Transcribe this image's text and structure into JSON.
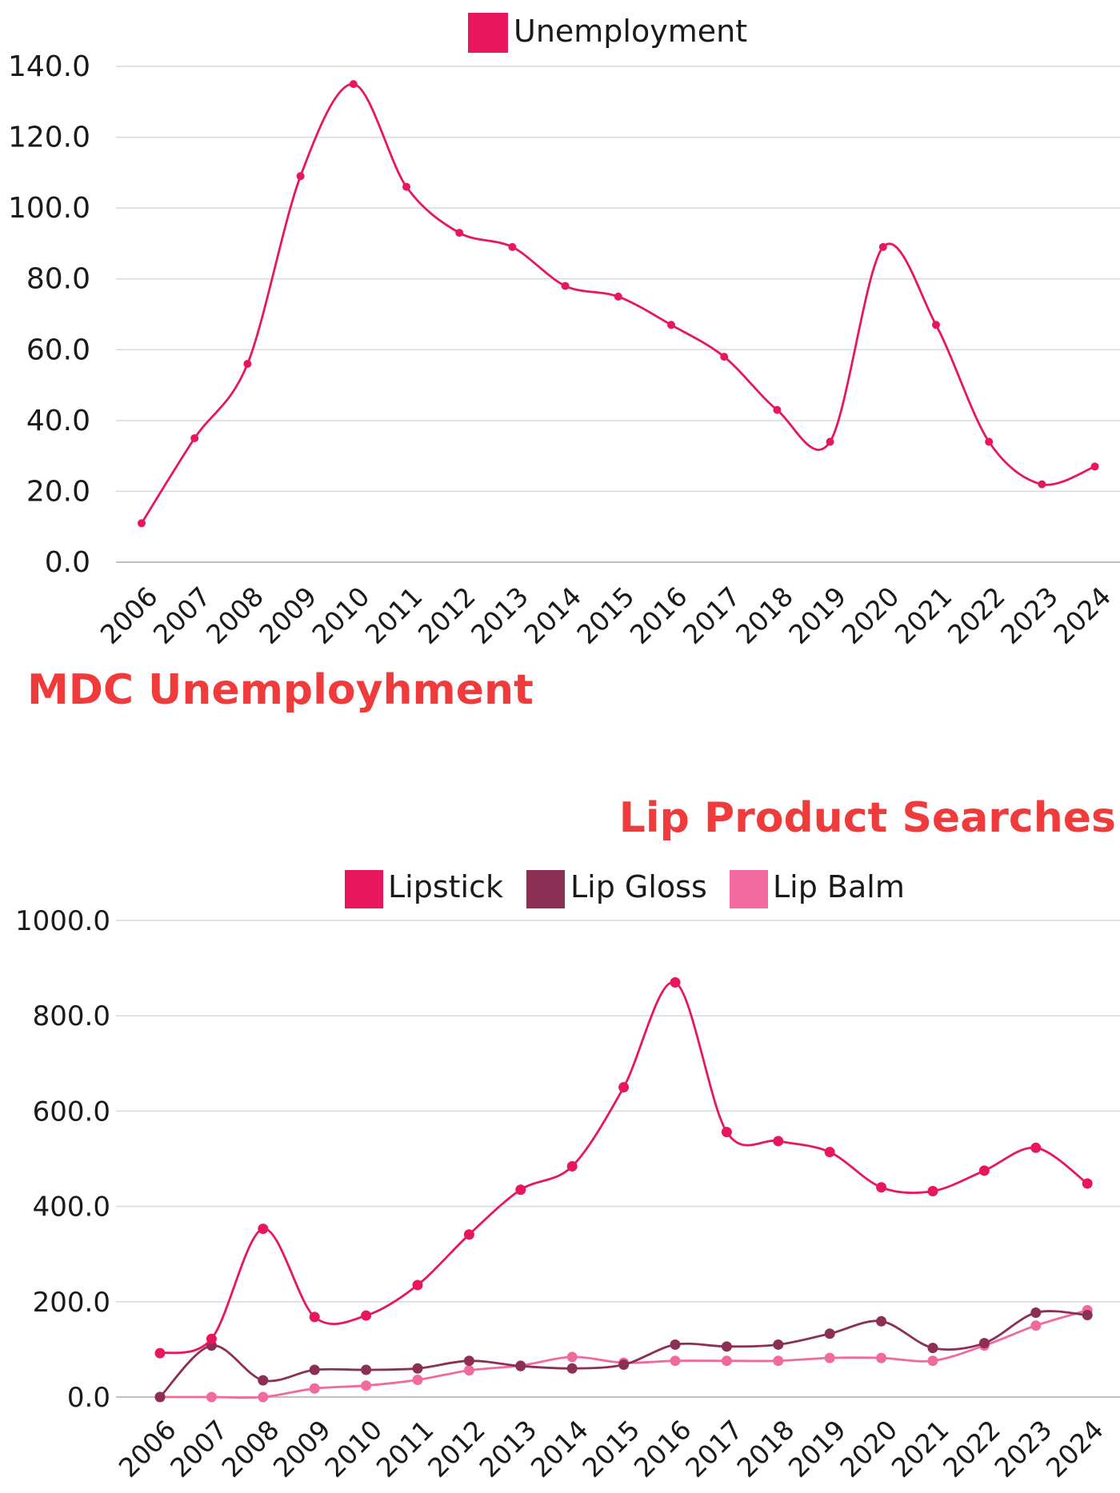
{
  "chart_data": [
    {
      "type": "line",
      "title": "MDC Unemployhment",
      "categories": [
        "2006",
        "2007",
        "2008",
        "2009",
        "2010",
        "2011",
        "2012",
        "2013",
        "2014",
        "2015",
        "2016",
        "2017",
        "2018",
        "2019",
        "2020",
        "2021",
        "2022",
        "2023",
        "2024"
      ],
      "series": [
        {
          "name": "Unemployment",
          "color": "#e8175d",
          "values": [
            11,
            35,
            56,
            109,
            135,
            106,
            93,
            89,
            78,
            75,
            67,
            58,
            43,
            34,
            89,
            67,
            34,
            22,
            27
          ]
        }
      ],
      "ylim": [
        0,
        140
      ],
      "yticks": [
        "0.0",
        "20.0",
        "40.0",
        "60.0",
        "80.0",
        "100.0",
        "120.0",
        "140.0"
      ],
      "legend": "top",
      "grid": true
    },
    {
      "type": "line",
      "title": "Lip Product Searches",
      "categories": [
        "2006",
        "2007",
        "2008",
        "2009",
        "2010",
        "2011",
        "2012",
        "2013",
        "2014",
        "2015",
        "2016",
        "2017",
        "2018",
        "2019",
        "2020",
        "2021",
        "2022",
        "2023",
        "2024"
      ],
      "series": [
        {
          "name": "Lipstick",
          "color": "#e8175d",
          "values": [
            92,
            122,
            353,
            168,
            171,
            235,
            341,
            435,
            484,
            650,
            870,
            556,
            537,
            514,
            440,
            432,
            475,
            523,
            448
          ]
        },
        {
          "name": "Lip Gloss",
          "color": "#8b2f55",
          "values": [
            0,
            108,
            35,
            57,
            57,
            60,
            76,
            65,
            60,
            68,
            110,
            106,
            110,
            133,
            159,
            103,
            113,
            177,
            172
          ]
        },
        {
          "name": "Lip Balm",
          "color": "#f06a9e",
          "values": [
            0,
            0,
            0,
            18,
            24,
            36,
            56,
            66,
            84,
            72,
            76,
            76,
            76,
            82,
            82,
            76,
            108,
            150,
            182
          ]
        }
      ],
      "ylim": [
        0,
        1000
      ],
      "yticks": [
        "0.0",
        "200.0",
        "400.0",
        "600.0",
        "800.0",
        "1000.0"
      ],
      "legend": "top",
      "grid": true
    }
  ]
}
